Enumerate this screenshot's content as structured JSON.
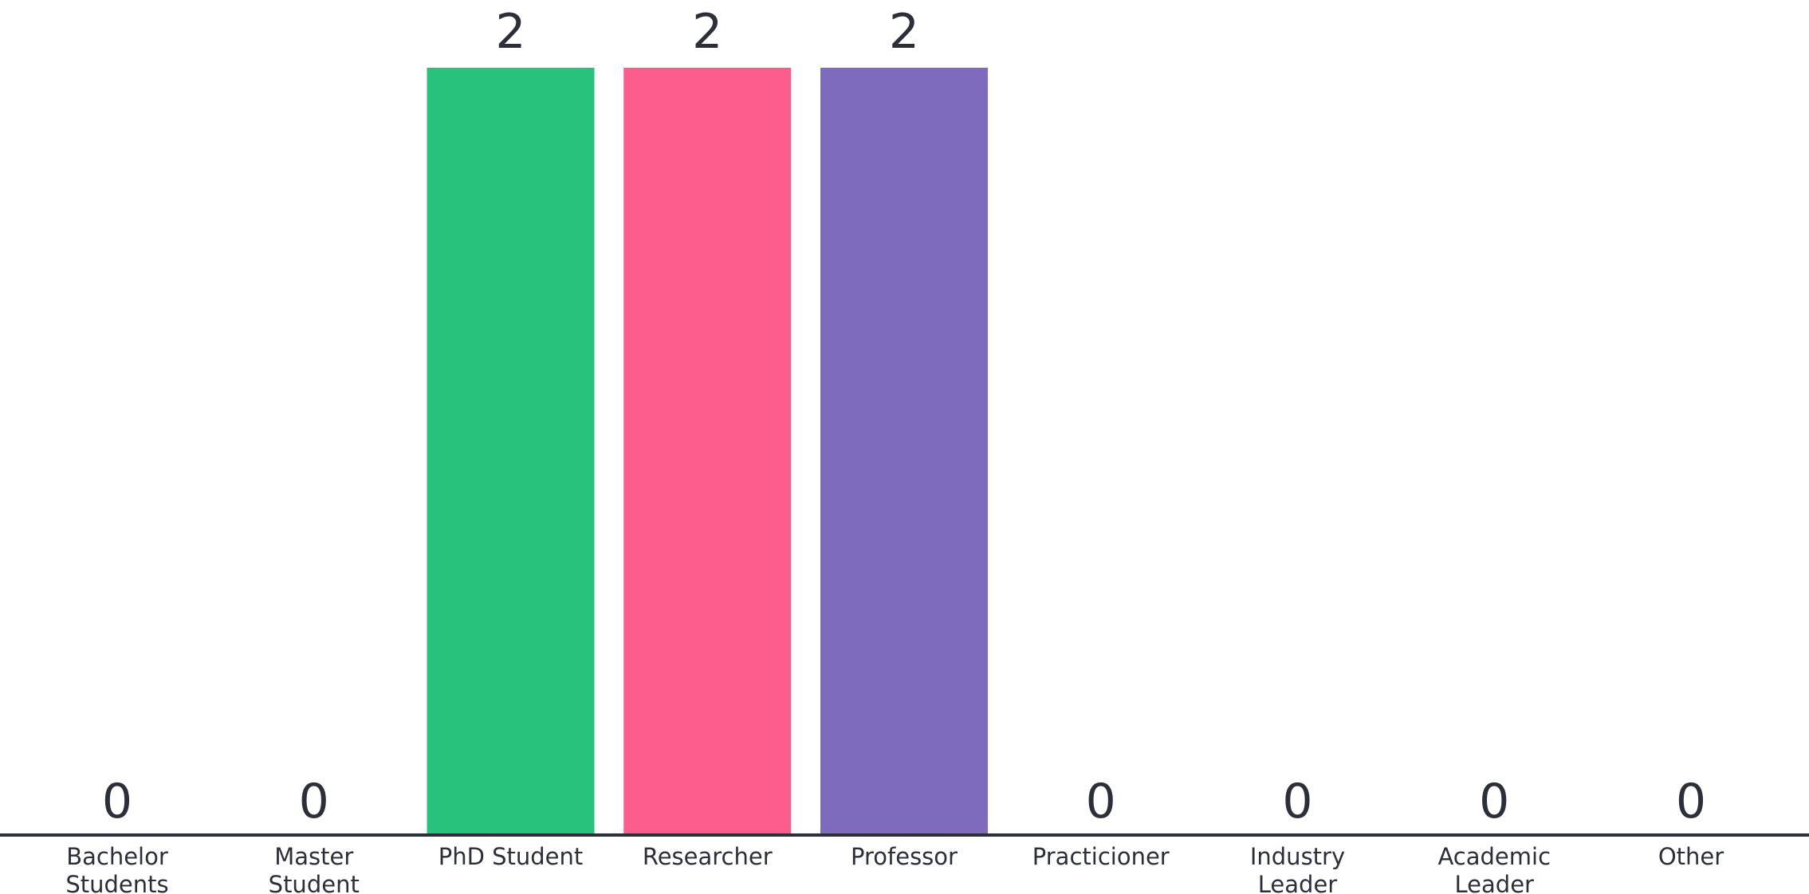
{
  "chart_data": {
    "type": "bar",
    "title": "",
    "xlabel": "",
    "ylabel": "",
    "ylim": [
      0,
      2
    ],
    "grid": false,
    "legend": "none",
    "categories": [
      [
        "Bachelor",
        "Students"
      ],
      [
        "Master",
        "Student"
      ],
      [
        "PhD Student"
      ],
      [
        "Researcher"
      ],
      [
        "Professor"
      ],
      [
        "Practicioner"
      ],
      [
        "Industry",
        "Leader"
      ],
      [
        "Academic",
        "Leader"
      ],
      [
        "Other"
      ]
    ],
    "values": [
      0,
      0,
      2,
      2,
      2,
      0,
      0,
      0,
      0
    ],
    "colors": [
      "#7a7fd4",
      "#7a7fd4",
      "#29c27d",
      "#fd5d8d",
      "#7e6bbd",
      "#7a7fd4",
      "#7a7fd4",
      "#7a7fd4",
      "#7a7fd4"
    ],
    "axis_color": "#2c2f3a"
  }
}
